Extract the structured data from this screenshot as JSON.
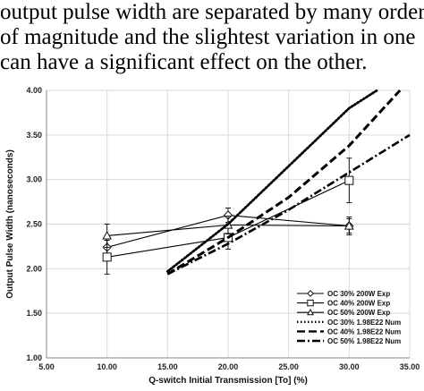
{
  "text_lines": [
    "output pulse width are separated by many orders",
    "of magnitude and the slightest variation in one",
    "can have a significant effect on the other."
  ],
  "chart_data": {
    "type": "line",
    "xlabel": "Q-switch Initial Transmission [To] (%)",
    "ylabel": "Output Pulse Width (nanoseconds)",
    "xlim": [
      5.0,
      35.0
    ],
    "ylim": [
      1.0,
      4.0
    ],
    "x_ticks": [
      "5.00",
      "10.00",
      "15.00",
      "20.00",
      "25.00",
      "30.00",
      "35.00"
    ],
    "y_ticks": [
      "1.00",
      "1.50",
      "2.00",
      "2.50",
      "3.00",
      "3.50",
      "4.00"
    ],
    "grid": true,
    "legend_position": "bottom-right",
    "series": [
      {
        "name": "OC 30% 200W Exp",
        "style": "solid-diamond",
        "x": [
          10,
          20,
          30
        ],
        "y": [
          2.24,
          2.6,
          2.48
        ],
        "err": [
          0.08,
          0.08,
          0.08
        ]
      },
      {
        "name": "OC 40% 200W Exp",
        "style": "solid-square",
        "x": [
          10,
          20,
          30
        ],
        "y": [
          2.13,
          2.35,
          2.99
        ],
        "err": [
          0.19,
          0.13,
          0.25
        ]
      },
      {
        "name": "OC 50% 200W Exp",
        "style": "solid-triangle",
        "x": [
          10,
          20,
          30
        ],
        "y": [
          2.37,
          2.49,
          2.48
        ],
        "err": [
          0.13,
          0.1,
          0.1
        ]
      },
      {
        "name": "OC 30% 1.98E22  Num",
        "style": "dotted",
        "x": [
          15,
          20,
          25,
          30,
          32.3
        ],
        "y": [
          1.97,
          2.5,
          3.15,
          3.8,
          4.0
        ]
      },
      {
        "name": "OC 40% 1.98E22  Num",
        "style": "dashed",
        "x": [
          15,
          20,
          25,
          30,
          34.2
        ],
        "y": [
          1.94,
          2.35,
          2.8,
          3.38,
          4.0
        ]
      },
      {
        "name": "OC 50% 1.98E22  Num",
        "style": "dashdot",
        "x": [
          15,
          20,
          25,
          30,
          35
        ],
        "y": [
          1.94,
          2.28,
          2.66,
          3.08,
          3.5
        ]
      }
    ]
  }
}
